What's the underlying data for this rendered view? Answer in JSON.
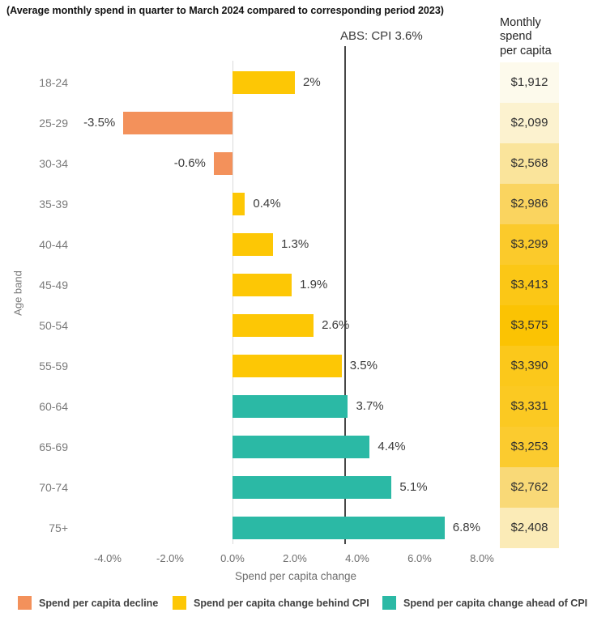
{
  "chart_data": {
    "type": "bar",
    "orientation": "horizontal",
    "title": "(Average monthly spend in quarter to March 2024 compared to corresponding period 2023)",
    "xlabel": "Spend per capita change",
    "ylabel": "Age band",
    "xlim": [
      -5,
      8.5
    ],
    "grid": "none",
    "x_tick_labels": [
      "-4.0%",
      "-2.0%",
      "0.0%",
      "2.0%",
      "4.0%",
      "6.0%",
      "8.0%"
    ],
    "x_tick_values": [
      -4,
      -2,
      0,
      2,
      4,
      6,
      8
    ],
    "annotation": {
      "text": "ABS: CPI 3.6%",
      "value": 3.6
    },
    "categories": [
      "18-24",
      "25-29",
      "30-34",
      "35-39",
      "40-44",
      "45-49",
      "50-54",
      "55-59",
      "60-64",
      "65-69",
      "70-74",
      "75+"
    ],
    "values": [
      2,
      -3.5,
      -0.6,
      0.4,
      1.3,
      1.9,
      2.6,
      3.5,
      3.7,
      4.4,
      5.1,
      6.8
    ],
    "value_labels": [
      "2%",
      "-3.5%",
      "-0.6%",
      "0.4%",
      "1.3%",
      "1.9%",
      "2.6%",
      "3.5%",
      "3.7%",
      "4.4%",
      "5.1%",
      "6.8%"
    ],
    "segment": [
      "behind",
      "decline",
      "decline",
      "behind",
      "behind",
      "behind",
      "behind",
      "behind",
      "ahead",
      "ahead",
      "ahead",
      "ahead"
    ],
    "monthly_spend_column": {
      "header": "Monthly\nspend\nper capita",
      "values": [
        1912,
        2099,
        2568,
        2986,
        3299,
        3413,
        3575,
        3390,
        3331,
        3253,
        2762,
        2408
      ],
      "labels": [
        "$1,912",
        "$2,099",
        "$2,568",
        "$2,986",
        "$3,299",
        "$3,413",
        "$3,575",
        "$3,390",
        "$3,331",
        "$3,253",
        "$2,762",
        "$2,408"
      ],
      "cell_colors": [
        "#FDFAEC",
        "#FCF2CF",
        "#FAE49B",
        "#FAD45F",
        "#FBCA2B",
        "#FBC716",
        "#FBC303",
        "#FBC81B",
        "#FBC922",
        "#FBCB2F",
        "#F9D977",
        "#FBEBB7"
      ]
    }
  },
  "legend": {
    "items": [
      {
        "label": "Spend per capita decline",
        "key": "decline"
      },
      {
        "label": "Spend per capita change behind CPI",
        "key": "behind"
      },
      {
        "label": "Spend per capita change ahead of CPI",
        "key": "ahead"
      }
    ]
  },
  "colors": {
    "decline": "#F3915B",
    "behind": "#FDC705",
    "ahead": "#2BB9A5",
    "zero_line": "#DBDBDB",
    "cpi_line": "#474747"
  }
}
